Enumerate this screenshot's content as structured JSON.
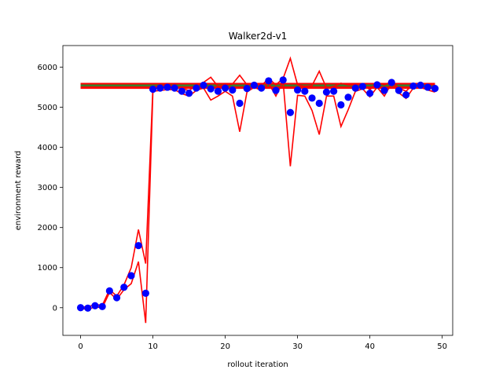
{
  "chart_data": {
    "type": "scatter",
    "title": "Walker2d-v1",
    "xlabel": "rollout iteration",
    "ylabel": "environment reward",
    "xlim": [
      -2.45,
      51.45
    ],
    "ylim": [
      -690,
      6540
    ],
    "xticks": [
      0,
      10,
      20,
      30,
      40,
      50
    ],
    "yticks": [
      0,
      1000,
      2000,
      3000,
      4000,
      5000,
      6000
    ],
    "grid": false,
    "legend": "none",
    "colors": {
      "points": "#0000ff",
      "band": "#ff0000",
      "reference_upper": "#ff0000",
      "reference_lower": "#ff0000",
      "reference_mid": "#3a7d2b"
    },
    "reference_lines": [
      5580,
      5540,
      5490
    ],
    "series": [
      {
        "kind": "points",
        "x": [
          0,
          1,
          2,
          3,
          4,
          5,
          6,
          7,
          8,
          9,
          10,
          11,
          12,
          13,
          14,
          15,
          16,
          17,
          18,
          19,
          20,
          21,
          22,
          23,
          24,
          25,
          26,
          27,
          28,
          29,
          30,
          31,
          32,
          33,
          34,
          35,
          36,
          37,
          38,
          39,
          40,
          41,
          42,
          43,
          44,
          45,
          46,
          47,
          48,
          49
        ],
        "y": [
          0,
          -10,
          50,
          30,
          420,
          250,
          510,
          800,
          1550,
          360,
          5450,
          5480,
          5500,
          5480,
          5400,
          5350,
          5480,
          5550,
          5460,
          5400,
          5480,
          5430,
          5100,
          5470,
          5550,
          5480,
          5660,
          5420,
          5680,
          4870,
          5430,
          5400,
          5230,
          5100,
          5380,
          5400,
          5060,
          5250,
          5480,
          5520,
          5350,
          5560,
          5420,
          5620,
          5420,
          5310,
          5530,
          5550,
          5500,
          5470
        ]
      },
      {
        "kind": "band-upper",
        "x": [
          0,
          1,
          2,
          3,
          4,
          5,
          6,
          7,
          8,
          9,
          10,
          11,
          12,
          13,
          14,
          15,
          16,
          17,
          18,
          19,
          20,
          21,
          22,
          23,
          24,
          25,
          26,
          27,
          28,
          29,
          30,
          31,
          32,
          33,
          34,
          35,
          36,
          37,
          38,
          39,
          40,
          41,
          42,
          43,
          44,
          45,
          46,
          47,
          48,
          49
        ],
        "y": [
          20,
          20,
          80,
          60,
          450,
          290,
          570,
          1000,
          1950,
          1100,
          5500,
          5540,
          5560,
          5520,
          5460,
          5420,
          5540,
          5620,
          5750,
          5520,
          5560,
          5580,
          5800,
          5560,
          5600,
          5540,
          5720,
          5560,
          5720,
          6220,
          5560,
          5520,
          5540,
          5900,
          5480,
          5520,
          5600,
          5560,
          5560,
          5580,
          5440,
          5620,
          5560,
          5640,
          5480,
          5400,
          5580,
          5600,
          5570,
          5560
        ]
      },
      {
        "kind": "band-lower",
        "x": [
          0,
          1,
          2,
          3,
          4,
          5,
          6,
          7,
          8,
          9,
          10,
          11,
          12,
          13,
          14,
          15,
          16,
          17,
          18,
          19,
          20,
          21,
          22,
          23,
          24,
          25,
          26,
          27,
          28,
          29,
          30,
          31,
          32,
          33,
          34,
          35,
          36,
          37,
          38,
          39,
          40,
          41,
          42,
          43,
          44,
          45,
          46,
          47,
          48,
          49
        ],
        "y": [
          -20,
          -40,
          20,
          0,
          380,
          210,
          450,
          600,
          1150,
          -380,
          5400,
          5420,
          5440,
          5440,
          5340,
          5280,
          5420,
          5480,
          5180,
          5280,
          5400,
          5280,
          4390,
          5380,
          5500,
          5420,
          5600,
          5280,
          5640,
          3530,
          5300,
          5280,
          4920,
          4320,
          5280,
          5280,
          4520,
          4940,
          5400,
          5460,
          5260,
          5500,
          5280,
          5600,
          5360,
          5220,
          5480,
          5500,
          5430,
          5380
        ]
      }
    ]
  }
}
